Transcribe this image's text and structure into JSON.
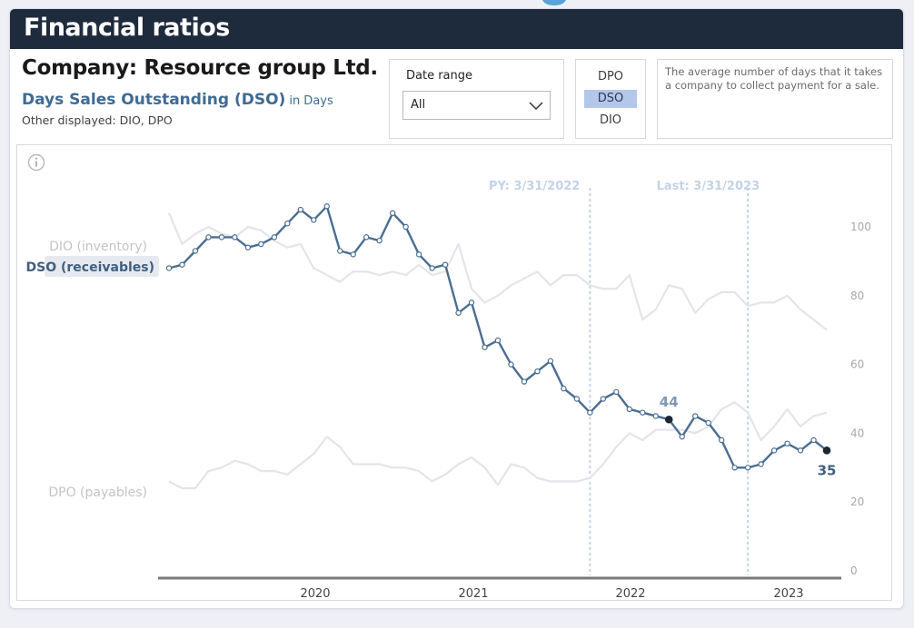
{
  "header": {
    "title": "Financial ratios"
  },
  "company_label": "Company: Resource group Ltd.",
  "metric": {
    "name": "Days Sales Outstanding (DSO)",
    "unit": "in Days",
    "other": "Other displayed: DIO, DPO"
  },
  "date_filter": {
    "label": "Date range",
    "value": "All"
  },
  "toggles": [
    "DPO",
    "DSO",
    "DIO"
  ],
  "active_toggle": "DSO",
  "description": "The average number of days that it takes a company to collect payment for a sale.",
  "colors": {
    "dso": "#4a6e92",
    "others": "#e3e5ea",
    "header_bg": "#1d2b3c",
    "toggle_active": "#b3c7ea",
    "ref_line": "#c3d3e6"
  },
  "chart_data": {
    "type": "line",
    "x_ticks": [
      "2020",
      "2021",
      "2022",
      "2023"
    ],
    "y_ticks": [
      0,
      20,
      40,
      60,
      80,
      100
    ],
    "ylim": [
      0,
      100
    ],
    "ref_lines": [
      {
        "label": "PY: 3/31/2022",
        "index": 32
      },
      {
        "label": "Last: 3/31/2023",
        "index": 44
      }
    ],
    "series": [
      {
        "name": "DSO (receivables)",
        "highlight": true,
        "values": [
          88,
          89,
          93,
          97,
          97,
          97,
          94,
          95,
          97,
          101,
          105,
          102,
          106,
          93,
          92,
          97,
          96,
          104,
          100,
          92,
          88,
          89,
          75,
          78,
          65,
          67,
          60,
          55,
          58,
          61,
          53,
          50,
          46,
          50,
          52,
          47,
          46,
          45,
          44,
          39,
          45,
          43,
          38,
          30,
          30,
          31,
          35,
          37,
          35,
          38,
          35
        ],
        "annotations": [
          {
            "index": 38,
            "label": "44"
          },
          {
            "index": 50,
            "label": "35"
          }
        ]
      },
      {
        "name": "DIO (inventory)",
        "highlight": false,
        "values": [
          104,
          95,
          98,
          100,
          98,
          97,
          100,
          99,
          96,
          94,
          95,
          88,
          86,
          84,
          87,
          87,
          86,
          87,
          86,
          89,
          86,
          87,
          95,
          82,
          78,
          80,
          83,
          85,
          87,
          83,
          86,
          86,
          83,
          82,
          82,
          86,
          73,
          76,
          83,
          82,
          75,
          79,
          81,
          81,
          77,
          78,
          78,
          80,
          76,
          73,
          70
        ]
      },
      {
        "name": "DPO (payables)",
        "highlight": false,
        "values": [
          26,
          24,
          24,
          29,
          30,
          32,
          31,
          29,
          29,
          28,
          31,
          34,
          39,
          36,
          31,
          31,
          31,
          30,
          30,
          29,
          26,
          28,
          31,
          33,
          30,
          25,
          31,
          30,
          27,
          26,
          26,
          26,
          27,
          31,
          36,
          40,
          38,
          41,
          41,
          41,
          40,
          42,
          47,
          49,
          46,
          38,
          42,
          47,
          42,
          45,
          46
        ]
      }
    ]
  }
}
